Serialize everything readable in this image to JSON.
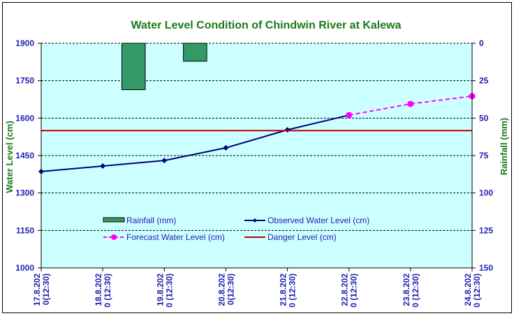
{
  "chart_data": {
    "type": "line",
    "title": "Water Level Condition of Chindwin River at  Kalewa",
    "xlabel": "",
    "ylabel": "Water Level (cm)",
    "y2label": "Rainfall (mm)",
    "categories": [
      [
        "17.8.202",
        "0(12:30)"
      ],
      [
        "18.8.202",
        "0 (12:30)"
      ],
      [
        "19.8.202",
        "0 (12:30)"
      ],
      [
        "20.8.202",
        "0(12:30)"
      ],
      [
        "21.8.202",
        "0 (12:30)"
      ],
      [
        "22.8.202",
        "0 (12:30)"
      ],
      [
        "23.8.202",
        "0 (12:30)"
      ],
      [
        "24.8.202",
        "0 (12:30)"
      ]
    ],
    "ylim": [
      1000,
      1900
    ],
    "yticks": [
      1000,
      1150,
      1300,
      1450,
      1600,
      1750,
      1900
    ],
    "y2lim": [
      0,
      150
    ],
    "y2ticks": [
      0,
      25,
      50,
      75,
      100,
      125,
      150
    ],
    "y2_inverted": true,
    "grid": true,
    "series": [
      {
        "name": "Rainfall (mm)",
        "type": "bar",
        "axis": "y2",
        "color": "#339966",
        "values": [
          null,
          null,
          31,
          12,
          null,
          null,
          null,
          null
        ]
      },
      {
        "name": "Observed Water Level (cm)",
        "type": "line",
        "color": "#000080",
        "marker": "diamond",
        "values": [
          1386,
          1408,
          1430,
          1481,
          1553,
          1612,
          null,
          null
        ]
      },
      {
        "name": "Forecast Water Level (cm)",
        "type": "line",
        "dashed": true,
        "color": "#ff00ff",
        "marker": "circle",
        "values": [
          null,
          null,
          null,
          null,
          null,
          1612,
          1657,
          1688
        ]
      },
      {
        "name": "Danger Level (cm)",
        "type": "line",
        "color": "#c00000",
        "values": [
          1550,
          1550,
          1550,
          1550,
          1550,
          1550,
          1550,
          1550
        ]
      }
    ],
    "legend_position": "bottom-inside",
    "colors": {
      "plot_bg": "#ccffff",
      "tick_text": "#1f1fb4",
      "title_text": "#1a7a1a"
    }
  }
}
